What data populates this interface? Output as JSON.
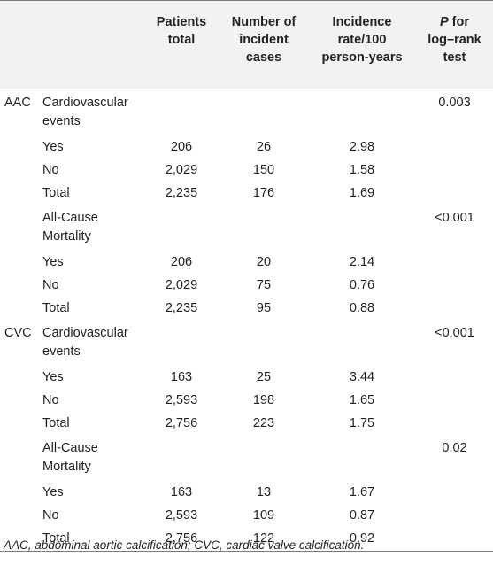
{
  "header": {
    "col_group": "",
    "col_label": "",
    "patients_total": [
      "Patients",
      "total"
    ],
    "incident_cases": [
      "Number of",
      "incident",
      "cases"
    ],
    "incidence_rate": [
      "Incidence",
      "rate/100",
      "person-years"
    ],
    "p_value": [
      "P",
      " for",
      "log–rank",
      "test"
    ]
  },
  "rows": [
    {
      "group": "AAC",
      "label": [
        "Cardiovascular",
        "events"
      ],
      "patients": "",
      "cases": "",
      "rate": "",
      "p": "0.003"
    },
    {
      "group": "",
      "label": [
        "Yes"
      ],
      "patients": "206",
      "cases": "26",
      "rate": "2.98",
      "p": ""
    },
    {
      "group": "",
      "label": [
        "No"
      ],
      "patients": "2,029",
      "cases": "150",
      "rate": "1.58",
      "p": ""
    },
    {
      "group": "",
      "label": [
        "Total"
      ],
      "patients": "2,235",
      "cases": "176",
      "rate": "1.69",
      "p": ""
    },
    {
      "group": "",
      "label": [
        "All-Cause",
        "Mortality"
      ],
      "patients": "",
      "cases": "",
      "rate": "",
      "p": "<0.001"
    },
    {
      "group": "",
      "label": [
        "Yes"
      ],
      "patients": "206",
      "cases": "20",
      "rate": "2.14",
      "p": ""
    },
    {
      "group": "",
      "label": [
        "No"
      ],
      "patients": "2,029",
      "cases": "75",
      "rate": "0.76",
      "p": ""
    },
    {
      "group": "",
      "label": [
        "Total"
      ],
      "patients": "2,235",
      "cases": "95",
      "rate": "0.88",
      "p": ""
    },
    {
      "group": "CVC",
      "label": [
        "Cardiovascular",
        "events"
      ],
      "patients": "",
      "cases": "",
      "rate": "",
      "p": "<0.001"
    },
    {
      "group": "",
      "label": [
        "Yes"
      ],
      "patients": "163",
      "cases": "25",
      "rate": "3.44",
      "p": ""
    },
    {
      "group": "",
      "label": [
        "No"
      ],
      "patients": "2,593",
      "cases": "198",
      "rate": "1.65",
      "p": ""
    },
    {
      "group": "",
      "label": [
        "Total"
      ],
      "patients": "2,756",
      "cases": "223",
      "rate": "1.75",
      "p": ""
    },
    {
      "group": "",
      "label": [
        "All-Cause",
        "Mortality"
      ],
      "patients": "",
      "cases": "",
      "rate": "",
      "p": "0.02"
    },
    {
      "group": "",
      "label": [
        "Yes"
      ],
      "patients": "163",
      "cases": "13",
      "rate": "1.67",
      "p": ""
    },
    {
      "group": "",
      "label": [
        "No"
      ],
      "patients": "2,593",
      "cases": "109",
      "rate": "0.87",
      "p": ""
    },
    {
      "group": "",
      "label": [
        "Total"
      ],
      "patients": "2,756",
      "cases": "122",
      "rate": "0.92",
      "p": ""
    }
  ],
  "footnote": "AAC, abdominal aortic calcification; CVC, cardiac valve calcification.",
  "colors": {
    "header_bg": "#f2f2f2",
    "rule": "#7a7a7a",
    "text": "#222222"
  }
}
